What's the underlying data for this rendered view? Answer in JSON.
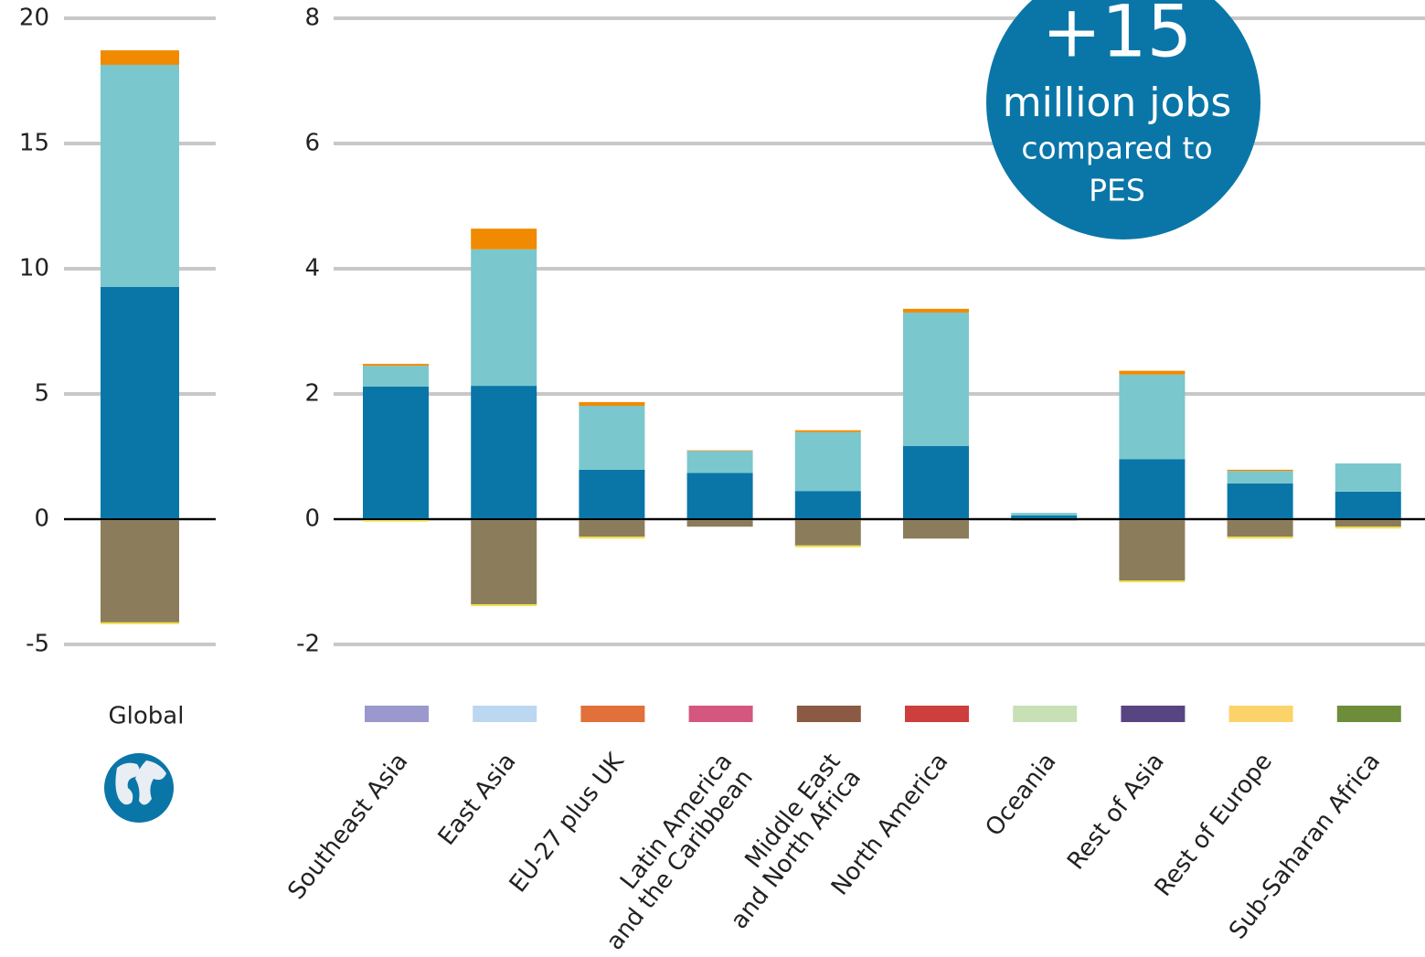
{
  "chart_data": [
    {
      "type": "bar",
      "stacked": true,
      "grid": true,
      "categories": [
        "Global"
      ],
      "series": [
        {
          "color": "#0a76a8",
          "values": [
            9.27
          ]
        },
        {
          "color": "#7ac7cd",
          "values": [
            8.87
          ]
        },
        {
          "color": "#f08a00",
          "values": [
            0.58
          ]
        },
        {
          "color": "#8b7d5c",
          "values": [
            -4.12
          ]
        },
        {
          "color": "#f2e04a",
          "values": [
            -0.05
          ]
        }
      ],
      "ylim": [
        -5,
        20
      ],
      "yticks": [
        -5,
        0,
        5,
        10,
        15,
        20
      ]
    },
    {
      "type": "bar",
      "stacked": true,
      "grid": true,
      "categories": [
        "Southeast Asia",
        "East Asia",
        "EU-27 plus UK",
        "Latin America\nand the Caribbean",
        "Middle East\nand North Africa",
        "North America",
        "Oceania",
        "Rest of Asia",
        "Rest of Europe",
        "Sub-Saharan Africa"
      ],
      "category_colors": [
        "#9a98cc",
        "#bcd7f0",
        "#e2703a",
        "#d4577f",
        "#8b5a44",
        "#cc3f3c",
        "#c7e0b6",
        "#574581",
        "#fcd36a",
        "#6e8d3a"
      ],
      "series": [
        {
          "color": "#0a76a8",
          "values": [
            2.12,
            2.13,
            0.79,
            0.74,
            0.45,
            1.17,
            0.06,
            0.96,
            0.57,
            0.44
          ]
        },
        {
          "color": "#7ac7cd",
          "values": [
            0.33,
            2.18,
            1.02,
            0.35,
            0.94,
            2.13,
            0.04,
            1.35,
            0.2,
            0.45
          ]
        },
        {
          "color": "#f08a00",
          "values": [
            0.03,
            0.33,
            0.06,
            0.01,
            0.03,
            0.06,
            0,
            0.06,
            0.02,
            0
          ]
        },
        {
          "color": "#8b7d5c",
          "values": [
            -0.01,
            -1.36,
            -0.28,
            -0.12,
            -0.42,
            -0.31,
            -0.02,
            -0.98,
            -0.28,
            -0.12
          ]
        },
        {
          "color": "#f2e04a",
          "values": [
            -0.02,
            -0.02,
            -0.03,
            0,
            -0.01,
            0,
            0,
            -0.02,
            -0.03,
            -0.01
          ]
        }
      ],
      "ylim": [
        -2,
        8
      ],
      "yticks": [
        -2,
        0,
        2,
        4,
        6,
        8
      ],
      "annotation": [
        "+15",
        "million jobs",
        "compared to",
        "PES"
      ]
    }
  ]
}
